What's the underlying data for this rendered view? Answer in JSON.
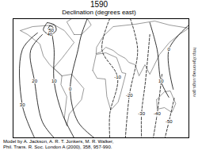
{
  "chart_data": {
    "type": "contour",
    "title": "1590",
    "subtitle": "Declination (degrees east)",
    "caption": [
      "Model by A. Jackson, A. R. T. Jonkers, M. R. Walker,",
      "Phil. Trans. R. Soc. London A (2000), 358, 957-990."
    ],
    "source": "http://geomag.usgs.gov",
    "xlim": [
      -180,
      180
    ],
    "ylim": [
      -70,
      80
    ],
    "tick_labels": false,
    "contours": [
      {
        "level": 0,
        "points": [
          [
            -28,
            80
          ],
          [
            -40,
            60
          ],
          [
            -47,
            41
          ],
          [
            -63,
            -9
          ],
          [
            -47,
            -50
          ],
          [
            -14,
            -70
          ]
        ]
      },
      {
        "level": 10,
        "points": [
          [
            -100,
            60
          ],
          [
            -96,
            41
          ],
          [
            -96,
            1
          ],
          [
            -79,
            -40
          ],
          [
            -55,
            -70
          ]
        ]
      },
      {
        "level": 20,
        "points": [
          [
            -120,
            60
          ],
          [
            -144,
            40
          ],
          [
            -136,
            1
          ],
          [
            -120,
            -50
          ],
          [
            -96,
            -70
          ]
        ]
      },
      {
        "level": 30,
        "points": [
          [
            -130,
            62
          ],
          [
            -161,
            41
          ],
          [
            -161,
            -29
          ],
          [
            -136,
            -70
          ]
        ]
      },
      {
        "level": 40,
        "points": [
          [
            -110,
            75
          ],
          [
            -95,
            72
          ],
          [
            -92,
            65
          ],
          [
            -105,
            60
          ],
          [
            -118,
            66
          ],
          [
            -110,
            75
          ]
        ]
      },
      {
        "level": 50,
        "points": [
          [
            -105,
            71
          ],
          [
            -98,
            69
          ],
          [
            -102,
            65
          ],
          [
            -108,
            67
          ],
          [
            -105,
            71
          ]
        ]
      },
      {
        "level": -10,
        "points": [
          [
            18,
            80
          ],
          [
            2,
            41
          ],
          [
            34,
            6
          ],
          [
            18,
            -40
          ],
          [
            18,
            -70
          ]
        ]
      },
      {
        "level": -20,
        "points": [
          [
            60,
            80
          ],
          [
            75,
            41
          ],
          [
            58,
            -17
          ],
          [
            50,
            -70
          ]
        ]
      },
      {
        "level": -30,
        "points": [
          [
            100,
            60
          ],
          [
            91,
            1
          ],
          [
            83,
            -40
          ],
          [
            83,
            -70
          ]
        ]
      },
      {
        "level": -40,
        "points": [
          [
            125,
            10
          ],
          [
            115,
            -40
          ],
          [
            107,
            -70
          ]
        ]
      },
      {
        "level": -50,
        "points": [
          [
            150,
            -20
          ],
          [
            139,
            -50
          ],
          [
            131,
            -70
          ]
        ]
      },
      {
        "level": 10,
        "points": [
          [
            100,
            75
          ],
          [
            115,
            41
          ],
          [
            123,
            1
          ],
          [
            139,
            -19
          ]
        ]
      },
      {
        "level": 0,
        "points": [
          [
            180,
            72
          ],
          [
            139,
            41
          ],
          [
            148,
            -9
          ]
        ]
      }
    ],
    "land": [
      [
        [
          -165,
          65
        ],
        [
          -140,
          70
        ],
        [
          -95,
          72
        ],
        [
          -75,
          65
        ],
        [
          -55,
          50
        ],
        [
          -80,
          30
        ],
        [
          -97,
          18
        ],
        [
          -80,
          8
        ],
        [
          -105,
          22
        ],
        [
          -118,
          33
        ],
        [
          -125,
          48
        ],
        [
          -150,
          60
        ],
        [
          -165,
          65
        ]
      ],
      [
        [
          -80,
          8
        ],
        [
          -60,
          10
        ],
        [
          -35,
          -8
        ],
        [
          -40,
          -22
        ],
        [
          -65,
          -40
        ],
        [
          -70,
          -55
        ],
        [
          -75,
          -45
        ],
        [
          -70,
          -18
        ],
        [
          -82,
          -3
        ],
        [
          -80,
          8
        ]
      ],
      [
        [
          -10,
          36
        ],
        [
          -9,
          44
        ],
        [
          -5,
          48
        ],
        [
          5,
          58
        ],
        [
          25,
          70
        ],
        [
          70,
          73
        ],
        [
          110,
          77
        ],
        [
          140,
          72
        ],
        [
          180,
          68
        ],
        [
          160,
          60
        ],
        [
          140,
          50
        ],
        [
          120,
          35
        ],
        [
          108,
          20
        ],
        [
          100,
          10
        ],
        [
          90,
          22
        ],
        [
          78,
          8
        ],
        [
          70,
          22
        ],
        [
          57,
          25
        ],
        [
          50,
          30
        ],
        [
          35,
          35
        ],
        [
          25,
          40
        ],
        [
          10,
          44
        ],
        [
          0,
          38
        ],
        [
          -10,
          36
        ]
      ],
      [
        [
          -17,
          15
        ],
        [
          -10,
          35
        ],
        [
          10,
          37
        ],
        [
          32,
          31
        ],
        [
          43,
          12
        ],
        [
          51,
          11
        ],
        [
          40,
          -15
        ],
        [
          35,
          -25
        ],
        [
          20,
          -35
        ],
        [
          12,
          -18
        ],
        [
          9,
          4
        ],
        [
          -8,
          5
        ],
        [
          -17,
          15
        ]
      ],
      [
        [
          114,
          -22
        ],
        [
          130,
          -12
        ],
        [
          142,
          -11
        ],
        [
          153,
          -27
        ],
        [
          145,
          -38
        ],
        [
          130,
          -32
        ],
        [
          115,
          -34
        ],
        [
          114,
          -22
        ]
      ],
      [
        [
          -55,
          60
        ],
        [
          -40,
          60
        ],
        [
          -20,
          72
        ],
        [
          -30,
          82
        ],
        [
          -60,
          80
        ],
        [
          -70,
          76
        ],
        [
          -55,
          60
        ]
      ]
    ]
  }
}
